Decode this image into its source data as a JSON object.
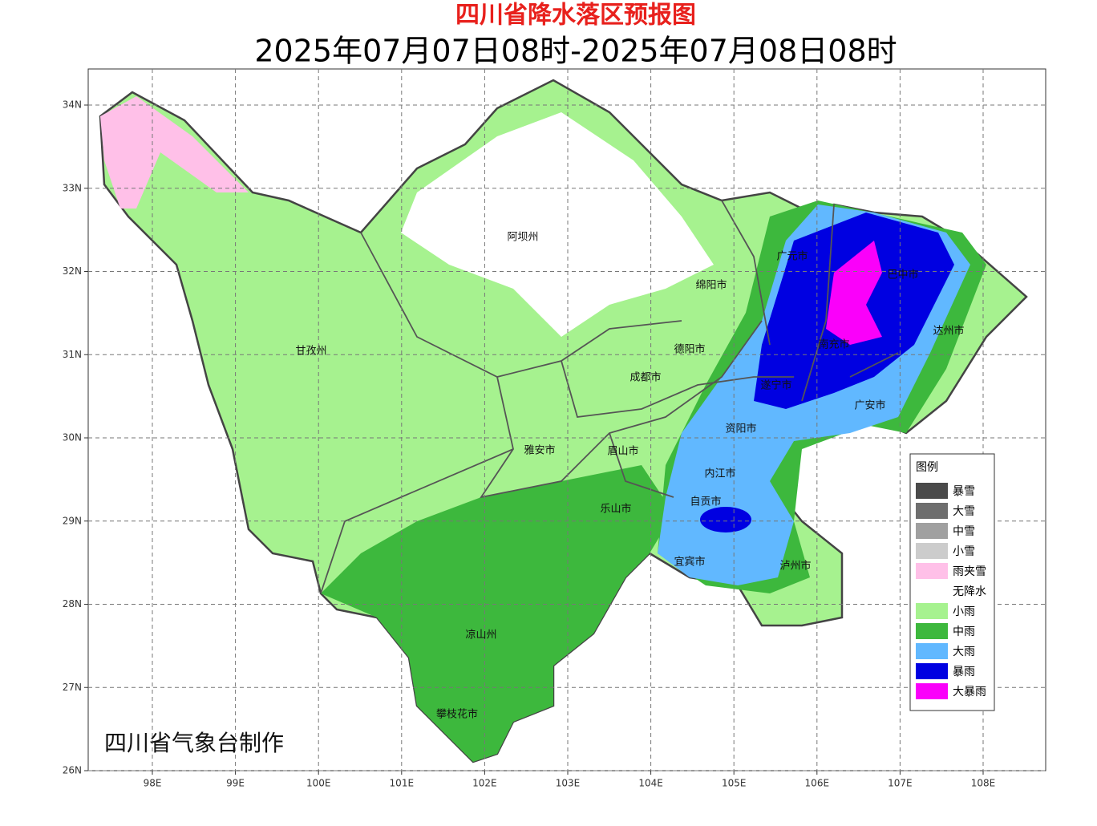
{
  "header": {
    "title": "四川省降水落区预报图",
    "subtitle": "2025年07月07日08时-2025年07月08日08时"
  },
  "axes": {
    "lon_ticks": [
      {
        "value": 98,
        "label": "98E"
      },
      {
        "value": 99,
        "label": "99E"
      },
      {
        "value": 100,
        "label": "100E"
      },
      {
        "value": 101,
        "label": "101E"
      },
      {
        "value": 102,
        "label": "102E"
      },
      {
        "value": 103,
        "label": "103E"
      },
      {
        "value": 104,
        "label": "104E"
      },
      {
        "value": 105,
        "label": "105E"
      },
      {
        "value": 106,
        "label": "106E"
      },
      {
        "value": 107,
        "label": "107E"
      },
      {
        "value": 108,
        "label": "108E"
      }
    ],
    "lat_ticks": [
      {
        "value": 26,
        "label": "26N"
      },
      {
        "value": 27,
        "label": "27N"
      },
      {
        "value": 28,
        "label": "28N"
      },
      {
        "value": 29,
        "label": "29N"
      },
      {
        "value": 30,
        "label": "30N"
      },
      {
        "value": 31,
        "label": "31N"
      },
      {
        "value": 32,
        "label": "32N"
      },
      {
        "value": 33,
        "label": "33N"
      },
      {
        "value": 34,
        "label": "34N"
      }
    ]
  },
  "cities": [
    "阿坝州",
    "广元市",
    "巴中市",
    "绵阳市",
    "达州市",
    "甘孜州",
    "德阳市",
    "南充市",
    "成都市",
    "遂宁市",
    "广安市",
    "资阳市",
    "雅安市",
    "眉山市",
    "内江市",
    "乐山市",
    "自贡市",
    "宜宾市",
    "泸州市",
    "凉山州",
    "攀枝花市"
  ],
  "legend": {
    "title": "图例",
    "items": [
      {
        "label": "暴雪",
        "color": "#4a4a4a"
      },
      {
        "label": "大雪",
        "color": "#6e6e6e"
      },
      {
        "label": "中雪",
        "color": "#a0a0a0"
      },
      {
        "label": "小雪",
        "color": "#cccccc"
      },
      {
        "label": "雨夹雪",
        "color": "#ffc0e8"
      },
      {
        "label": "无降水",
        "color": "#ffffff"
      },
      {
        "label": "小雨",
        "color": "#a6f28f"
      },
      {
        "label": "中雨",
        "color": "#3db83d"
      },
      {
        "label": "大雨",
        "color": "#61b8ff"
      },
      {
        "label": "暴雨",
        "color": "#0000e1"
      },
      {
        "label": "大暴雨",
        "color": "#fa00fa"
      }
    ]
  },
  "credit": "四川省气象台制作"
}
